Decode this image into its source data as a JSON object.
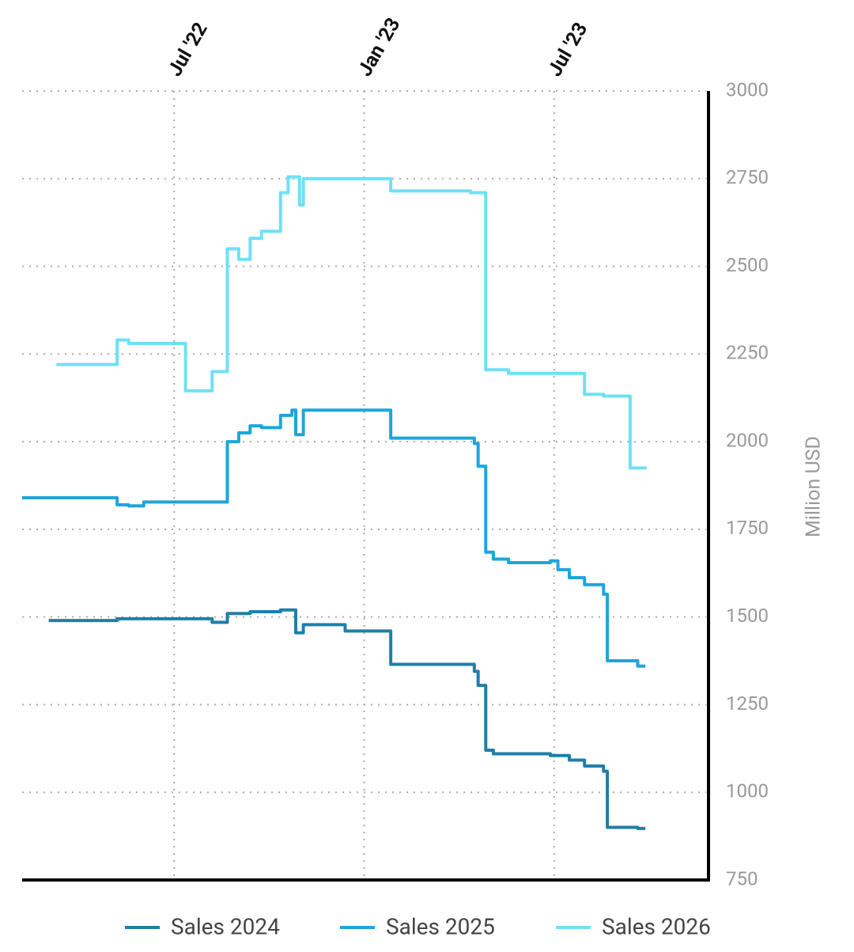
{
  "chart_data": {
    "type": "line",
    "step": true,
    "xlim": [
      2022.1,
      2023.9
    ],
    "xticks": [
      {
        "value": 2022.5,
        "label": "Jul '22"
      },
      {
        "value": 2023.0,
        "label": "Jan '23"
      },
      {
        "value": 2023.5,
        "label": "Jul '23"
      }
    ],
    "ylim": [
      750,
      3000
    ],
    "yticks": [
      750,
      1000,
      1250,
      1500,
      1750,
      2000,
      2250,
      2500,
      2750,
      3000
    ],
    "y_label": "Million USD",
    "grid": true,
    "legend": "bottom",
    "series": [
      {
        "name": "Sales 2024",
        "color": "#1f7fa8",
        "x": [
          2022.17,
          2022.35,
          2022.6,
          2022.64,
          2022.7,
          2022.78,
          2022.82,
          2022.84,
          2022.95,
          2023.07,
          2023.29,
          2023.3,
          2023.32,
          2023.34,
          2023.49,
          2023.54,
          2023.58,
          2023.63,
          2023.64,
          2023.72,
          2023.74
        ],
        "values": [
          1490,
          1495,
          1485,
          1510,
          1515,
          1520,
          1455,
          1478,
          1460,
          1365,
          1345,
          1305,
          1120,
          1110,
          1105,
          1092,
          1075,
          1060,
          900,
          897,
          897
        ]
      },
      {
        "name": "Sales 2025",
        "color": "#1ea5dc",
        "x": [
          2022.1,
          2022.35,
          2022.38,
          2022.42,
          2022.64,
          2022.67,
          2022.7,
          2022.73,
          2022.78,
          2022.81,
          2022.82,
          2022.84,
          2023.07,
          2023.29,
          2023.3,
          2023.32,
          2023.34,
          2023.38,
          2023.49,
          2023.51,
          2023.54,
          2023.58,
          2023.63,
          2023.64,
          2023.72,
          2023.74
        ],
        "values": [
          1840,
          1820,
          1817,
          1828,
          2000,
          2025,
          2045,
          2040,
          2075,
          2090,
          2020,
          2090,
          2010,
          1995,
          1930,
          1685,
          1665,
          1655,
          1660,
          1635,
          1612,
          1592,
          1565,
          1375,
          1360,
          1360
        ]
      },
      {
        "name": "Sales 2026",
        "color": "#6fe0f7",
        "x": [
          2022.19,
          2022.35,
          2022.38,
          2022.53,
          2022.6,
          2022.64,
          2022.67,
          2022.7,
          2022.73,
          2022.78,
          2022.8,
          2022.83,
          2022.84,
          2023.07,
          2023.28,
          2023.32,
          2023.38,
          2023.58,
          2023.63,
          2023.7,
          2023.74
        ],
        "values": [
          2220,
          2290,
          2280,
          2145,
          2200,
          2550,
          2520,
          2580,
          2600,
          2710,
          2755,
          2675,
          2750,
          2715,
          2710,
          2205,
          2195,
          2135,
          2130,
          1925,
          1922
        ]
      }
    ]
  }
}
